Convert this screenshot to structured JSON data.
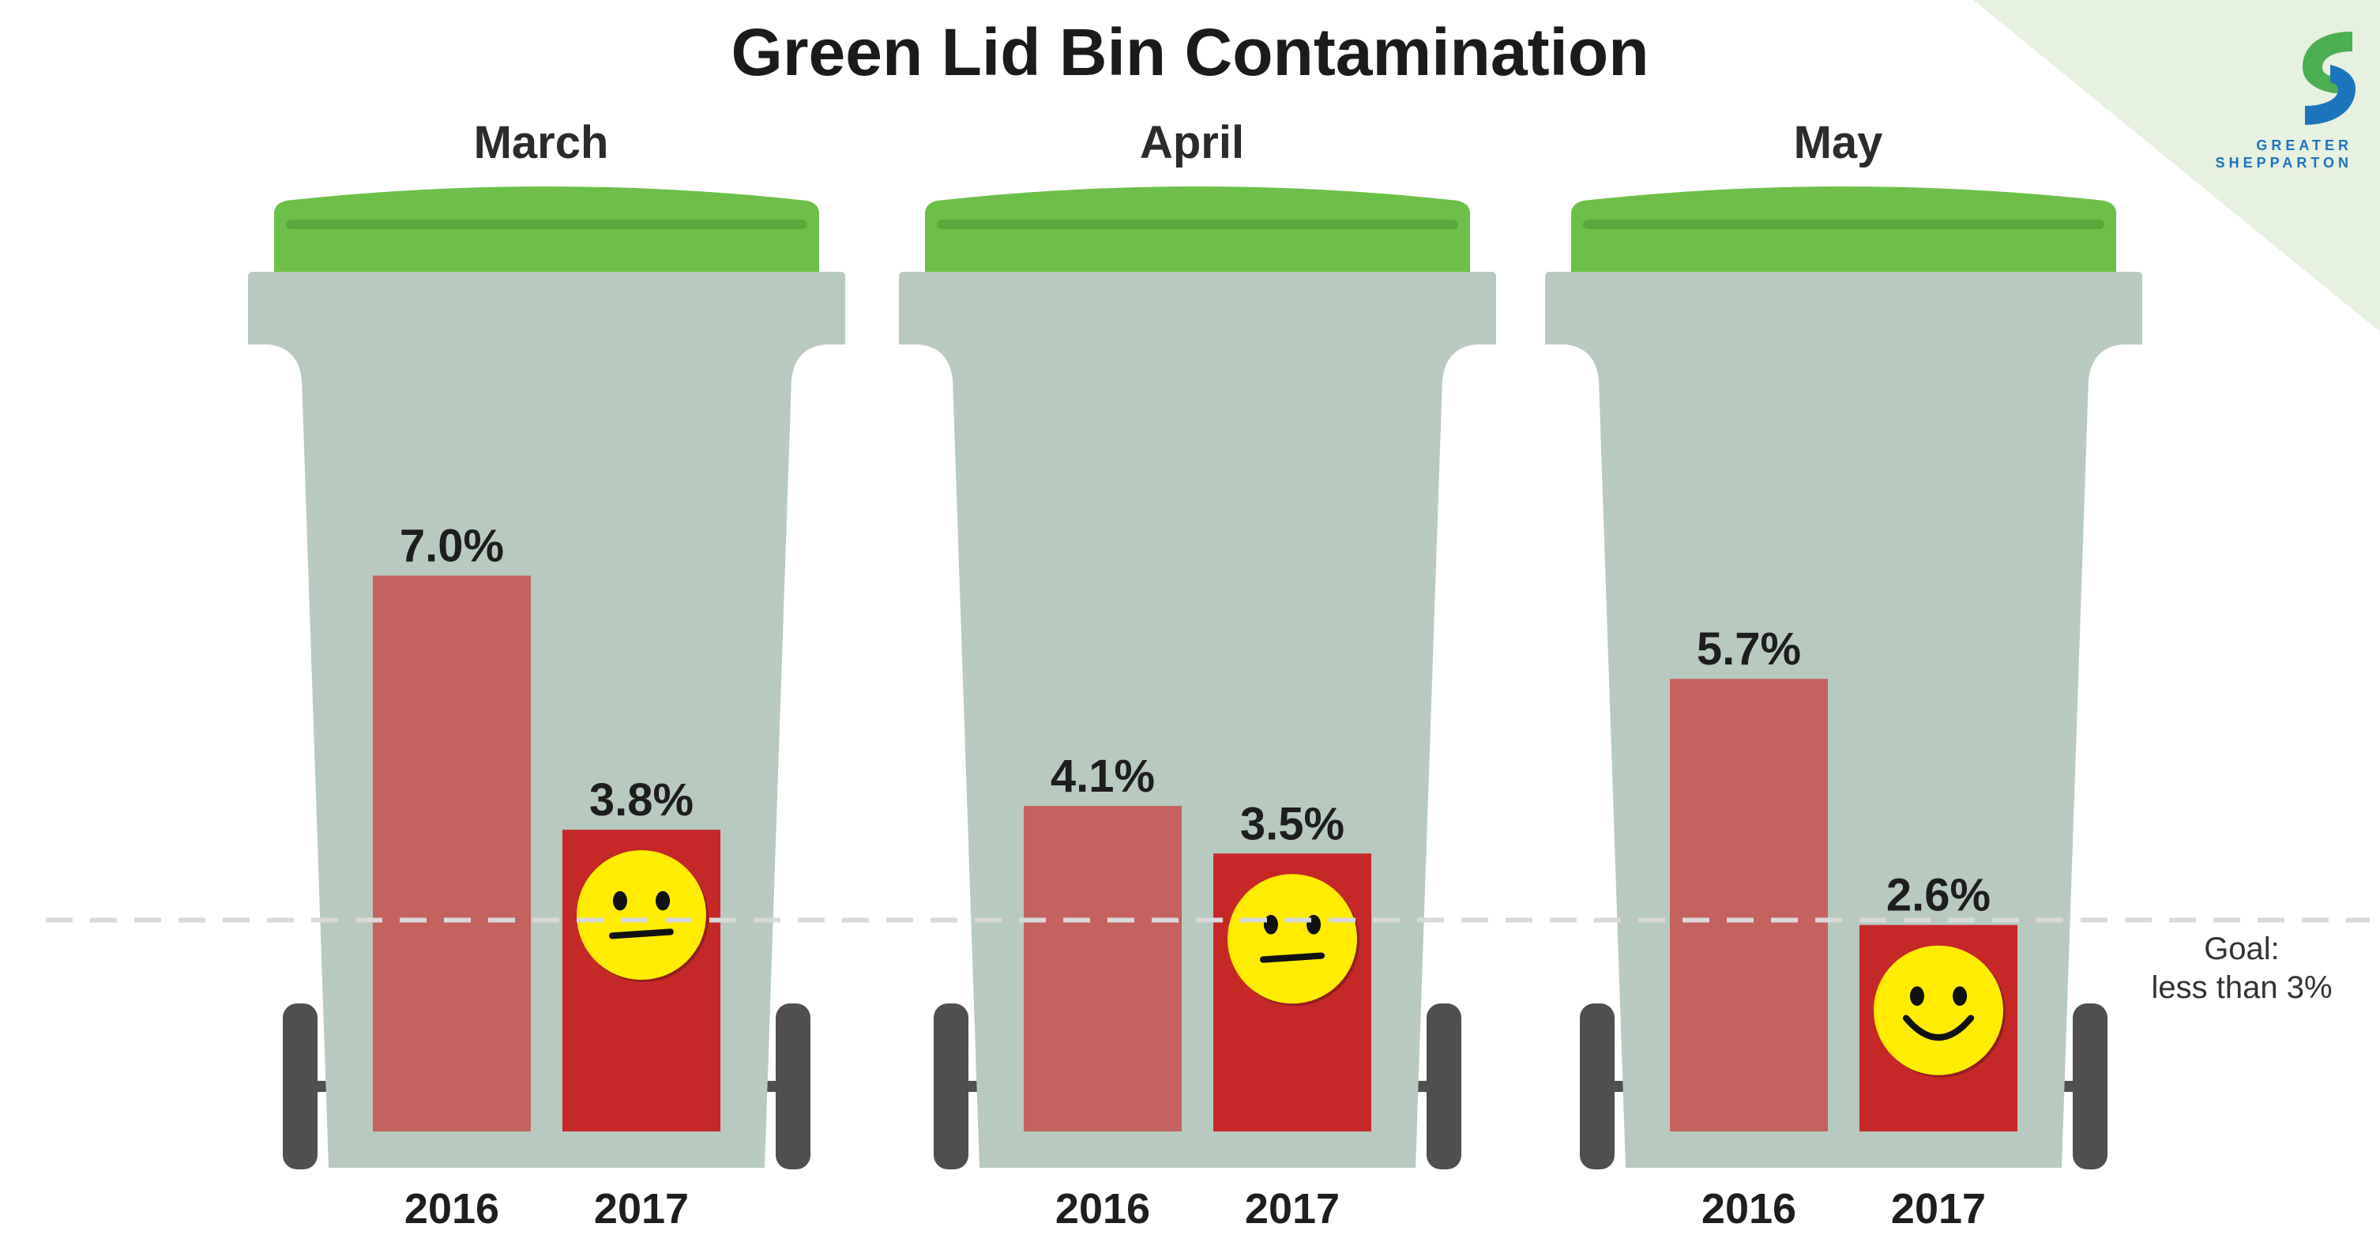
{
  "chart_data": {
    "type": "bar",
    "title": "Green Lid Bin Contamination",
    "categories": [
      "March",
      "April",
      "May"
    ],
    "bar_labels": [
      "2016",
      "2017"
    ],
    "series": [
      {
        "values": [
          7.0,
          4.1,
          5.7
        ],
        "labels": [
          "7.0%",
          "4.1%",
          "5.7%"
        ]
      },
      {
        "values": [
          3.8,
          3.5,
          2.6
        ],
        "labels": [
          "3.8%",
          "3.5%",
          "2.6%"
        ]
      }
    ],
    "ylim": [
      0,
      9.2
    ],
    "goal": {
      "value": 3.0,
      "label_line1": "Goal:",
      "label_line2": "less than 3%"
    },
    "faces": [
      "neutral",
      "neutral",
      "smile"
    ],
    "colors": {
      "bar_2016": "#c4635d",
      "bar_2017": "#c62828",
      "bin_body": "#b8cabf",
      "bin_lid": "#6cc049",
      "lid_stripe": "#56a83a",
      "wheel": "#4f4f4f",
      "face": "#ffec00",
      "goal_line": "#d9d9d9",
      "corner": "#e6f1e0"
    }
  },
  "brand": {
    "name_line1": "GREATER",
    "name_line2": "SHEPPARTON",
    "icon": "shepparton-s-logo-icon"
  }
}
